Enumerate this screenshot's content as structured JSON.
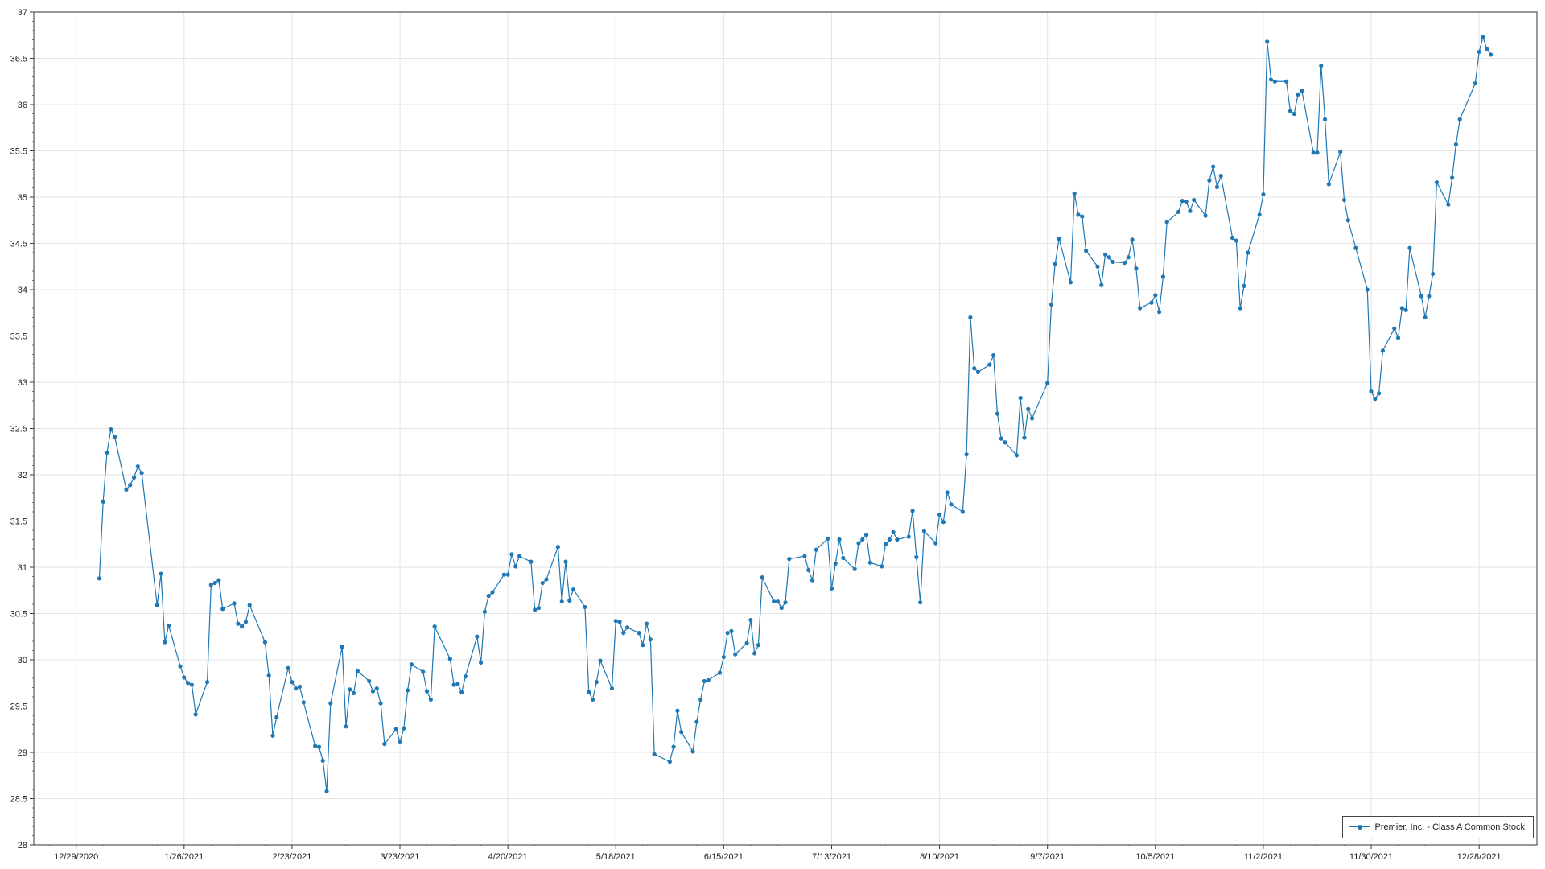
{
  "chart_data": {
    "type": "line",
    "title": "",
    "xlabel": "",
    "ylabel": "",
    "x_tick_labels": [
      "12/29/2020",
      "1/26/2021",
      "2/23/2021",
      "3/23/2021",
      "4/20/2021",
      "5/18/2021",
      "6/15/2021",
      "7/13/2021",
      "8/10/2021",
      "9/7/2021",
      "10/5/2021",
      "11/2/2021",
      "11/30/2021",
      "12/28/2021"
    ],
    "y_tick_labels": [
      "28",
      "28.5",
      "29",
      "29.5",
      "30",
      "30.5",
      "31",
      "31.5",
      "32",
      "32.5",
      "33",
      "33.5",
      "34",
      "34.5",
      "35",
      "35.5",
      "36",
      "36.5",
      "37"
    ],
    "ylim": [
      28,
      37
    ],
    "xlim": [
      "2020-12-18",
      "2022-01-12"
    ],
    "grid": true,
    "legend_position": "bottom-right",
    "color": "#1f77b4",
    "series": [
      {
        "name": "Premier, Inc. - Class A Common Stock",
        "x": [
          "2021-01-04",
          "2021-01-05",
          "2021-01-06",
          "2021-01-07",
          "2021-01-08",
          "2021-01-11",
          "2021-01-12",
          "2021-01-13",
          "2021-01-14",
          "2021-01-15",
          "2021-01-19",
          "2021-01-20",
          "2021-01-21",
          "2021-01-22",
          "2021-01-25",
          "2021-01-26",
          "2021-01-27",
          "2021-01-28",
          "2021-01-29",
          "2021-02-01",
          "2021-02-02",
          "2021-02-03",
          "2021-02-04",
          "2021-02-05",
          "2021-02-08",
          "2021-02-09",
          "2021-02-10",
          "2021-02-11",
          "2021-02-12",
          "2021-02-16",
          "2021-02-17",
          "2021-02-18",
          "2021-02-19",
          "2021-02-22",
          "2021-02-23",
          "2021-02-24",
          "2021-02-25",
          "2021-02-26",
          "2021-03-01",
          "2021-03-02",
          "2021-03-03",
          "2021-03-04",
          "2021-03-05",
          "2021-03-08",
          "2021-03-09",
          "2021-03-10",
          "2021-03-11",
          "2021-03-12",
          "2021-03-15",
          "2021-03-16",
          "2021-03-17",
          "2021-03-18",
          "2021-03-19",
          "2021-03-22",
          "2021-03-23",
          "2021-03-24",
          "2021-03-25",
          "2021-03-26",
          "2021-03-29",
          "2021-03-30",
          "2021-03-31",
          "2021-04-01",
          "2021-04-05",
          "2021-04-06",
          "2021-04-07",
          "2021-04-08",
          "2021-04-09",
          "2021-04-12",
          "2021-04-13",
          "2021-04-14",
          "2021-04-15",
          "2021-04-16",
          "2021-04-19",
          "2021-04-20",
          "2021-04-21",
          "2021-04-22",
          "2021-04-23",
          "2021-04-26",
          "2021-04-27",
          "2021-04-28",
          "2021-04-29",
          "2021-04-30",
          "2021-05-03",
          "2021-05-04",
          "2021-05-05",
          "2021-05-06",
          "2021-05-07",
          "2021-05-10",
          "2021-05-11",
          "2021-05-12",
          "2021-05-13",
          "2021-05-14",
          "2021-05-17",
          "2021-05-18",
          "2021-05-19",
          "2021-05-20",
          "2021-05-21",
          "2021-05-24",
          "2021-05-25",
          "2021-05-26",
          "2021-05-27",
          "2021-05-28",
          "2021-06-01",
          "2021-06-02",
          "2021-06-03",
          "2021-06-04",
          "2021-06-07",
          "2021-06-08",
          "2021-06-09",
          "2021-06-10",
          "2021-06-11",
          "2021-06-14",
          "2021-06-15",
          "2021-06-16",
          "2021-06-17",
          "2021-06-18",
          "2021-06-21",
          "2021-06-22",
          "2021-06-23",
          "2021-06-24",
          "2021-06-25",
          "2021-06-28",
          "2021-06-29",
          "2021-06-30",
          "2021-07-01",
          "2021-07-02",
          "2021-07-06",
          "2021-07-07",
          "2021-07-08",
          "2021-07-09",
          "2021-07-12",
          "2021-07-13",
          "2021-07-14",
          "2021-07-15",
          "2021-07-16",
          "2021-07-19",
          "2021-07-20",
          "2021-07-21",
          "2021-07-22",
          "2021-07-23",
          "2021-07-26",
          "2021-07-27",
          "2021-07-28",
          "2021-07-29",
          "2021-07-30",
          "2021-08-02",
          "2021-08-03",
          "2021-08-04",
          "2021-08-05",
          "2021-08-06",
          "2021-08-09",
          "2021-08-10",
          "2021-08-11",
          "2021-08-12",
          "2021-08-13",
          "2021-08-16",
          "2021-08-17",
          "2021-08-18",
          "2021-08-19",
          "2021-08-20",
          "2021-08-23",
          "2021-08-24",
          "2021-08-25",
          "2021-08-26",
          "2021-08-27",
          "2021-08-30",
          "2021-08-31",
          "2021-09-01",
          "2021-09-02",
          "2021-09-03",
          "2021-09-07",
          "2021-09-08",
          "2021-09-09",
          "2021-09-10",
          "2021-09-13",
          "2021-09-14",
          "2021-09-15",
          "2021-09-16",
          "2021-09-17",
          "2021-09-20",
          "2021-09-21",
          "2021-09-22",
          "2021-09-23",
          "2021-09-24",
          "2021-09-27",
          "2021-09-28",
          "2021-09-29",
          "2021-09-30",
          "2021-10-01",
          "2021-10-04",
          "2021-10-05",
          "2021-10-06",
          "2021-10-07",
          "2021-10-08",
          "2021-10-11",
          "2021-10-12",
          "2021-10-13",
          "2021-10-14",
          "2021-10-15",
          "2021-10-18",
          "2021-10-19",
          "2021-10-20",
          "2021-10-21",
          "2021-10-22",
          "2021-10-25",
          "2021-10-26",
          "2021-10-27",
          "2021-10-28",
          "2021-10-29",
          "2021-11-01",
          "2021-11-02",
          "2021-11-03",
          "2021-11-04",
          "2021-11-05",
          "2021-11-08",
          "2021-11-09",
          "2021-11-10",
          "2021-11-11",
          "2021-11-12",
          "2021-11-15",
          "2021-11-16",
          "2021-11-17",
          "2021-11-18",
          "2021-11-19",
          "2021-11-22",
          "2021-11-23",
          "2021-11-24",
          "2021-11-26",
          "2021-11-29",
          "2021-11-30",
          "2021-12-01",
          "2021-12-02",
          "2021-12-03",
          "2021-12-06",
          "2021-12-07",
          "2021-12-08",
          "2021-12-09",
          "2021-12-10",
          "2021-12-13",
          "2021-12-14",
          "2021-12-15",
          "2021-12-16",
          "2021-12-17",
          "2021-12-20",
          "2021-12-21",
          "2021-12-22",
          "2021-12-23",
          "2021-12-27",
          "2021-12-28",
          "2021-12-29",
          "2021-12-30",
          "2021-12-31"
        ],
        "y": [
          30.88,
          31.71,
          32.24,
          32.49,
          32.41,
          31.84,
          31.89,
          31.97,
          32.09,
          32.02,
          30.59,
          30.93,
          30.19,
          30.37,
          29.93,
          29.81,
          29.75,
          29.73,
          29.41,
          29.76,
          30.81,
          30.83,
          30.86,
          30.55,
          30.61,
          30.39,
          30.36,
          30.41,
          30.59,
          30.19,
          29.83,
          29.18,
          29.38,
          29.91,
          29.76,
          29.69,
          29.71,
          29.54,
          29.07,
          29.06,
          28.91,
          28.58,
          29.53,
          30.14,
          29.28,
          29.68,
          29.64,
          29.88,
          29.77,
          29.66,
          29.69,
          29.53,
          29.09,
          29.25,
          29.11,
          29.26,
          29.67,
          29.95,
          29.87,
          29.66,
          29.57,
          30.36,
          30.01,
          29.73,
          29.74,
          29.65,
          29.82,
          30.25,
          29.97,
          30.52,
          30.69,
          30.73,
          30.92,
          30.92,
          31.14,
          31.01,
          31.12,
          31.06,
          30.54,
          30.56,
          30.83,
          30.87,
          31.22,
          30.63,
          31.06,
          30.64,
          30.76,
          30.57,
          29.65,
          29.57,
          29.76,
          29.99,
          29.69,
          30.42,
          30.41,
          30.29,
          30.35,
          30.29,
          30.16,
          30.39,
          30.22,
          28.98,
          28.9,
          29.06,
          29.45,
          29.22,
          29.01,
          29.33,
          29.57,
          29.77,
          29.78,
          29.86,
          30.03,
          30.29,
          30.31,
          30.06,
          30.18,
          30.43,
          30.07,
          30.16,
          30.89,
          30.63,
          30.63,
          30.56,
          30.62,
          31.09,
          31.12,
          30.97,
          30.86,
          31.19,
          31.31,
          30.77,
          31.04,
          31.3,
          31.1,
          30.98,
          31.26,
          31.3,
          31.35,
          31.05,
          31.01,
          31.25,
          31.3,
          31.38,
          31.3,
          31.33,
          31.61,
          31.11,
          30.62,
          31.39,
          31.26,
          31.57,
          31.49,
          31.81,
          31.68,
          31.6,
          32.22,
          33.7,
          33.15,
          33.11,
          33.19,
          33.29,
          32.66,
          32.39,
          32.35,
          32.21,
          32.83,
          32.4,
          32.71,
          32.61,
          32.99,
          33.84,
          34.28,
          34.55,
          34.08,
          35.04,
          34.81,
          34.79,
          34.42,
          34.25,
          34.05,
          34.38,
          34.35,
          34.3,
          34.29,
          34.35,
          34.54,
          34.23,
          33.8,
          33.86,
          33.94,
          33.76,
          34.14,
          34.73,
          34.84,
          34.96,
          34.95,
          34.85,
          34.97,
          34.8,
          35.18,
          35.33,
          35.11,
          35.23,
          34.56,
          34.53,
          33.8,
          34.04,
          34.4,
          34.81,
          35.03,
          36.68,
          36.27,
          36.25,
          36.25,
          35.93,
          35.9,
          36.11,
          36.15,
          35.48,
          35.48,
          36.42,
          35.84,
          35.14,
          35.49,
          34.97,
          34.75,
          34.45,
          34.0,
          32.9,
          32.82,
          32.88,
          33.34,
          33.58,
          33.48,
          33.8,
          33.78,
          34.45,
          33.93,
          33.7,
          33.93,
          34.17,
          35.16,
          34.92,
          35.21,
          35.57,
          35.84,
          36.23,
          36.57,
          36.73,
          36.6,
          36.54
        ]
      }
    ]
  }
}
